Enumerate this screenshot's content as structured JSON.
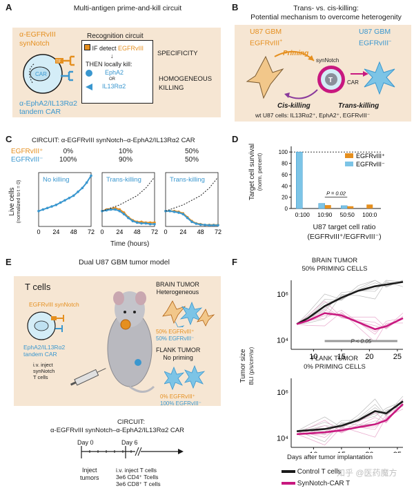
{
  "panel_a": {
    "letter": "A",
    "title": "Multi-antigen prime-and-kill circuit",
    "synnotch_label_1": "α-EGFRvIII",
    "synnotch_label_2": "synNotch",
    "car_label_1": "α-EphA2/IL13Rα2",
    "car_label_2": "tandem CAR",
    "tf": "TF",
    "car": "CAR",
    "recog_title": "Recognition circuit",
    "if_text": "IF detect",
    "if_antigen": "EGFRvIII",
    "then_text": "THEN locally kill:",
    "kill_1": "EphA2",
    "or": "OR",
    "kill_2": "IL13Rα2",
    "specificity": "SPECIFICITY",
    "homogeneous_1": "HOMOGENEOUS",
    "homogeneous_2": "KILLING"
  },
  "panel_b": {
    "letter": "B",
    "title_1": "Trans- vs. cis-killing:",
    "title_2": "Potential mechanism to overcome heterogenity",
    "left_1": "U87 GBM",
    "left_2": "EGFRvIII",
    "left_sup": "+",
    "right_1": "U87 GBM",
    "right_2": "EGFRvIII",
    "right_sup": "–",
    "priming": "Priming",
    "synnotch": "synNotch",
    "t": "T",
    "car": "CAR",
    "cis": "Cis-killing",
    "trans": "Trans-killing",
    "footnote": "wt U87 cells: IL13Rα2⁺, EphA2⁺, EGFRvIII⁻"
  },
  "panel_c": {
    "letter": "C",
    "circuit": "CIRCUIT:  α-EGFRvIII synNotch–α-EphA2/IL13Rα2 CAR",
    "row_plus": "EGFRvIII⁺",
    "row_minus": "EGFRvIII⁻",
    "ylabel": "Live cells",
    "ylabel_2": "(normalized to t = 0)",
    "xlabel": "Time (hours)",
    "ticks": [
      "0",
      "24",
      "48",
      "72"
    ],
    "plots": [
      {
        "plus": "0%",
        "minus": "100%",
        "label": "No killing"
      },
      {
        "plus": "10%",
        "minus": "90%",
        "label": "Trans-killing"
      },
      {
        "plus": "50%",
        "minus": "50%",
        "label": "Trans-killing"
      }
    ]
  },
  "panel_d": {
    "letter": "D",
    "ylabel_1": "Target cell survival",
    "ylabel_2": "(norm. percent)",
    "xlabel_1": "U87 target cell ratio",
    "xlabel_2": "(EGFRvIII⁺/EGFRvIII⁻)",
    "legend_plus": "EGFRvIII⁺",
    "legend_minus": "EGFRvIII⁻",
    "pvalue": "P = 0.02",
    "yticks": [
      "0",
      "20",
      "40",
      "60",
      "80",
      "100"
    ]
  },
  "panel_e": {
    "letter": "E",
    "title": "Dual U87 GBM tumor model",
    "t_cells": "T cells",
    "synnotch": "EGFRvIII synNotch",
    "car_1": "EphA2/IL13Rα2",
    "car_2": "tandem CAR",
    "inject_1": "i.v. inject",
    "inject_2": "synNotch",
    "inject_3": "T cells",
    "brain_1": "BRAIN TUMOR",
    "brain_2": "Heterogeneous",
    "brain_plus": "50% EGFRvIII⁺",
    "brain_minus": "50% EGFRvIII⁻",
    "flank_1": "FLANK TUMOR",
    "flank_2": "No priming",
    "flank_plus": "0% EGFRvIII⁺",
    "flank_minus": "100% EGFRvIII⁻",
    "circuit_1": "CIRCUIT:",
    "circuit_2": "α-EGFRvIII synNotch–α-EphA2/IL13Rα2 CAR",
    "day0": "Day 0",
    "day6": "Day 6",
    "inject_tumors_1": "Inject",
    "inject_tumors_2": "tumors",
    "inject_t_1": "i.v. inject T cells",
    "inject_t_2": "3e6 CD4⁺ Tcells",
    "inject_t_3": "3e6 CD8⁺ T cells"
  },
  "panel_f": {
    "letter": "F",
    "brain_title_1": "BRAIN TUMOR",
    "brain_title_2": "50% PRIMING CELLS",
    "flank_title_1": "FLANK TUMOR",
    "flank_title_2": "0% PRIMING CELLS",
    "ylabel_1": "Tumor size",
    "ylabel_2": "BLI (p/s/cm²/sr)",
    "xlabel": "Days after tumor implantation",
    "pvalue": "P < 0.05",
    "ytick_hi": "10⁶",
    "ytick_lo": "10⁴",
    "legend_control": "Control T cells",
    "legend_synnotch": "SynNotch-CAR T",
    "watermark": "知乎 @医药魔方"
  },
  "colors": {
    "orange": "#e58f1f",
    "blue": "#3a97cf",
    "magenta": "#c8187f",
    "tan": "#f6e6d3"
  },
  "chart_data": [
    {
      "type": "line",
      "panel": "C1",
      "label": "No killing",
      "xlim": [
        0,
        72
      ],
      "ylim": [
        0,
        3.5
      ],
      "series": [
        {
          "x": [
            0,
            6,
            12,
            18,
            24,
            30,
            36,
            42,
            48,
            54,
            60,
            66,
            72
          ],
          "values": [
            1.0,
            1.1,
            1.2,
            1.3,
            1.4,
            1.55,
            1.7,
            1.85,
            2.0,
            2.25,
            2.5,
            2.85,
            3.3
          ]
        }
      ]
    },
    {
      "type": "line",
      "panel": "C2",
      "label": "Trans-killing",
      "xlim": [
        0,
        72
      ],
      "ylim": [
        0,
        3.5
      ],
      "series": [
        {
          "name": "EGFRvIII⁺",
          "x": [
            0,
            6,
            12,
            18,
            24,
            30,
            36,
            42,
            48,
            54,
            60,
            66,
            72
          ],
          "values": [
            1.0,
            1.1,
            1.15,
            1.2,
            1.1,
            0.9,
            0.6,
            0.4,
            0.3,
            0.3,
            0.25,
            0.25,
            0.25
          ]
        },
        {
          "name": "EGFRvIII⁻",
          "x": [
            0,
            6,
            12,
            18,
            24,
            30,
            36,
            42,
            48,
            54,
            60,
            66,
            72
          ],
          "values": [
            1.0,
            1.05,
            1.1,
            1.1,
            1.0,
            0.8,
            0.55,
            0.35,
            0.25,
            0.2,
            0.2,
            0.15,
            0.15
          ]
        },
        {
          "name": "expected",
          "x": [
            0,
            12,
            24,
            36,
            48,
            60,
            72
          ],
          "values": [
            1.0,
            1.2,
            1.4,
            1.7,
            2.0,
            2.5,
            3.2
          ]
        }
      ]
    },
    {
      "type": "line",
      "panel": "C3",
      "label": "Trans-killing",
      "xlim": [
        0,
        72
      ],
      "ylim": [
        0,
        3.5
      ],
      "series": [
        {
          "name": "EGFRvIII⁺",
          "x": [
            0,
            6,
            12,
            18,
            24,
            30,
            36,
            42,
            48,
            54,
            60,
            66,
            72
          ],
          "values": [
            1.0,
            1.0,
            1.0,
            0.95,
            0.85,
            0.6,
            0.35,
            0.2,
            0.15,
            0.1,
            0.1,
            0.1,
            0.1
          ]
        },
        {
          "name": "EGFRvIII⁻",
          "x": [
            0,
            6,
            12,
            18,
            24,
            30,
            36,
            42,
            48,
            54,
            60,
            66,
            72
          ],
          "values": [
            1.0,
            1.0,
            0.95,
            0.9,
            0.8,
            0.55,
            0.3,
            0.18,
            0.12,
            0.1,
            0.08,
            0.08,
            0.08
          ]
        },
        {
          "name": "expected",
          "x": [
            0,
            12,
            24,
            36,
            48,
            60,
            72
          ],
          "values": [
            1.0,
            1.2,
            1.4,
            1.7,
            2.0,
            2.5,
            3.2
          ]
        }
      ]
    },
    {
      "type": "bar",
      "panel": "D",
      "categories": [
        "0:100",
        "10:90",
        "50:50",
        "100:0"
      ],
      "ylim": [
        0,
        110
      ],
      "series": [
        {
          "name": "EGFRvIII⁺",
          "values": [
            null,
            6,
            4,
            7
          ]
        },
        {
          "name": "EGFRvIII⁻",
          "values": [
            100,
            9,
            5,
            null
          ]
        }
      ]
    },
    {
      "type": "line",
      "panel": "F-brain",
      "log_y": true,
      "xlim": [
        6,
        26
      ],
      "ylim": [
        4000,
        4000000
      ],
      "x": [
        7,
        9,
        12,
        15,
        18,
        21,
        23,
        26
      ],
      "series": [
        {
          "name": "Control T cells",
          "values": [
            50000,
            90000,
            300000,
            700000,
            1400000,
            2200000,
            2600000,
            3400000
          ]
        },
        {
          "name": "SynNotch-CAR T",
          "values": [
            50000,
            70000,
            150000,
            120000,
            60000,
            30000,
            40000,
            90000
          ]
        }
      ]
    },
    {
      "type": "line",
      "panel": "F-flank",
      "log_y": true,
      "xlim": [
        6,
        26
      ],
      "ylim": [
        4000,
        4000000
      ],
      "x": [
        7,
        9,
        12,
        15,
        18,
        21,
        23,
        26
      ],
      "series": [
        {
          "name": "Control T cells",
          "values": [
            20000,
            22000,
            25000,
            35000,
            60000,
            150000,
            120000,
            400000
          ]
        },
        {
          "name": "SynNotch-CAR T",
          "values": [
            15000,
            16000,
            18000,
            22000,
            30000,
            40000,
            60000,
            300000
          ]
        }
      ]
    }
  ]
}
